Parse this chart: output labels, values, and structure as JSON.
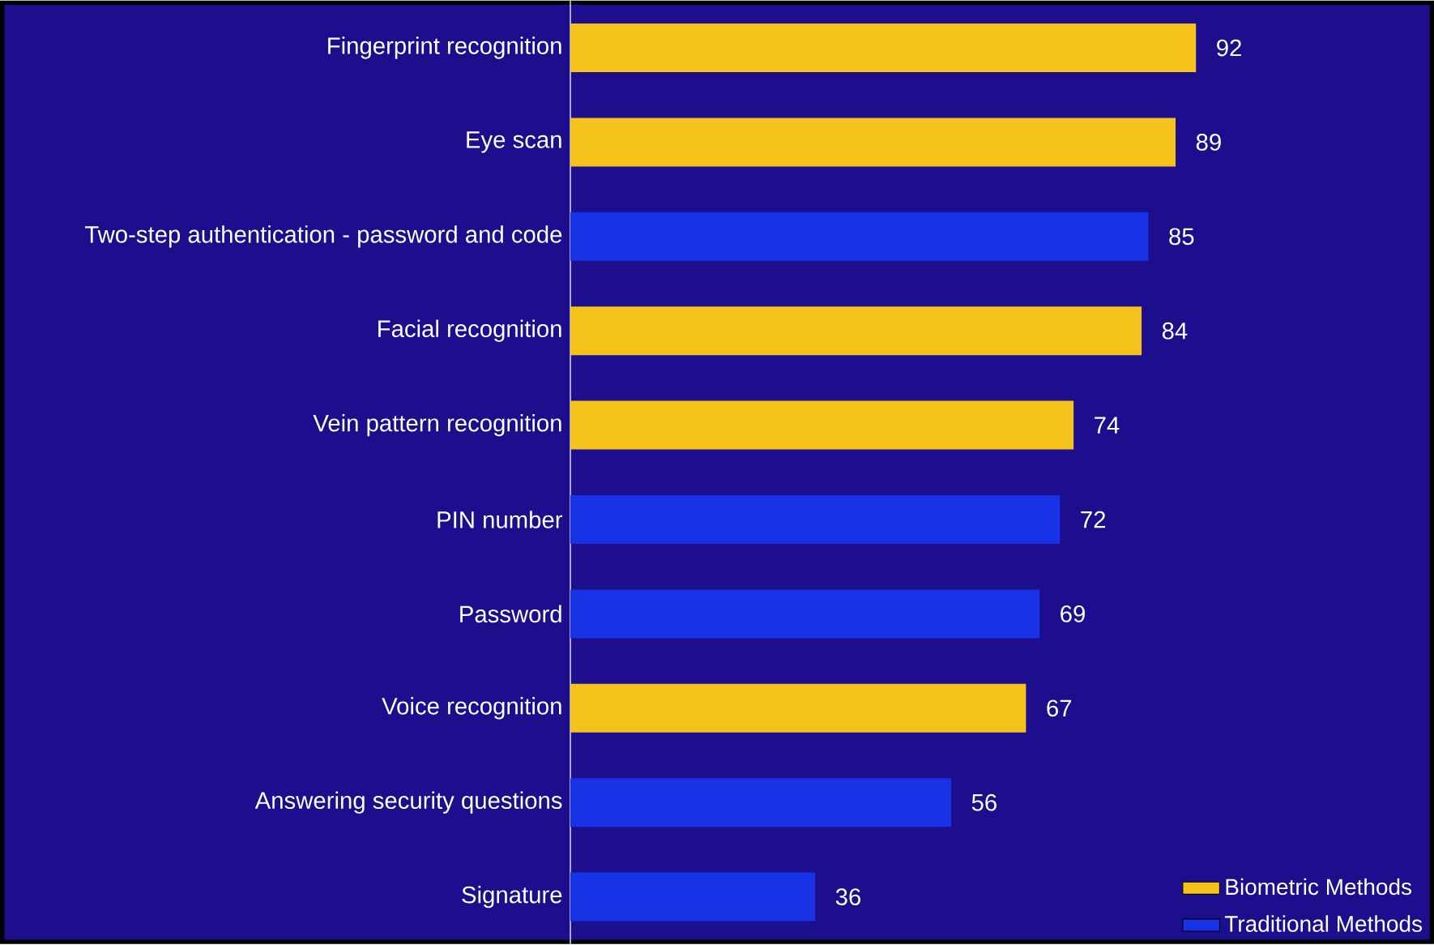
{
  "chart_data": {
    "type": "bar",
    "orientation": "horizontal",
    "categories": [
      "Fingerprint recognition",
      "Eye scan",
      "Two-step authentication - password and code",
      "Facial recognition",
      "Vein pattern recognition",
      "PIN number",
      "Password",
      "Voice recognition",
      "Answering security questions",
      "Signature"
    ],
    "series": [
      {
        "name": "Biometric Methods",
        "color": "#f5c21b",
        "values": [
          92,
          89,
          null,
          84,
          74,
          null,
          null,
          67,
          null,
          null
        ]
      },
      {
        "name": "Traditional Methods",
        "color": "#1833e6",
        "values": [
          null,
          null,
          85,
          null,
          null,
          72,
          69,
          null,
          56,
          36
        ]
      }
    ],
    "xlim": [
      0,
      127
    ],
    "data_labels": true,
    "legend": "bottom right",
    "tick_labels": "y"
  }
}
